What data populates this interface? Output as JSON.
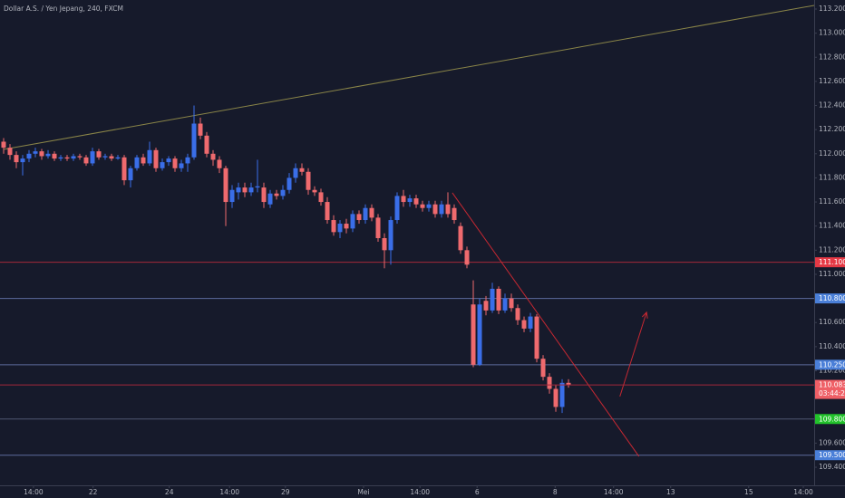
{
  "chart_data": {
    "type": "candlestick",
    "title": "Dollar A.S. / Yen Jepang, 240, FXCM",
    "up_color": "#3a6ee8",
    "down_color": "#ef6a6e",
    "grid": false,
    "x": [
      0,
      1,
      2,
      3,
      4,
      5,
      6,
      7,
      8,
      9,
      10,
      11,
      12,
      13,
      14,
      15,
      16,
      17,
      18,
      19,
      20,
      21,
      22,
      23,
      24,
      25,
      26,
      27,
      28,
      29,
      30,
      31,
      32,
      33,
      34,
      35,
      36,
      37,
      38,
      39,
      40,
      41,
      42,
      43,
      44,
      45,
      46,
      47,
      48,
      49,
      50,
      51,
      52,
      53,
      54,
      55,
      56,
      57,
      58,
      59,
      60,
      61,
      62,
      63,
      64,
      65,
      66,
      67,
      68,
      69,
      70,
      71,
      72,
      73,
      74,
      75,
      76,
      77,
      78,
      79,
      80,
      81,
      82,
      83,
      84,
      85,
      86,
      87,
      88,
      89
    ],
    "open": [
      112.1,
      112.05,
      111.99,
      111.93,
      111.96,
      112.0,
      112.02,
      111.98,
      112.0,
      111.96,
      111.97,
      111.96,
      111.98,
      111.97,
      111.92,
      112.02,
      111.97,
      111.98,
      111.96,
      111.97,
      111.78,
      111.88,
      111.97,
      111.92,
      112.03,
      111.88,
      111.93,
      111.96,
      111.88,
      111.92,
      111.97,
      112.25,
      112.15,
      112.0,
      111.95,
      111.88,
      111.6,
      111.68,
      111.72,
      111.68,
      111.72,
      111.72,
      111.58,
      111.67,
      111.65,
      111.7,
      111.8,
      111.88,
      111.85,
      111.7,
      111.68,
      111.6,
      111.45,
      111.35,
      111.42,
      111.38,
      111.5,
      111.45,
      111.55,
      111.47,
      111.3,
      111.2,
      111.45,
      111.65,
      111.6,
      111.63,
      111.58,
      111.55,
      111.58,
      111.5,
      111.58,
      111.55,
      111.4,
      111.2,
      110.75,
      110.25,
      110.78,
      110.7,
      110.88,
      110.7,
      110.8,
      110.72,
      110.62,
      110.55,
      110.65,
      110.3,
      110.15,
      110.05,
      109.9,
      110.1
    ],
    "high": [
      112.13,
      112.08,
      112.02,
      111.99,
      112.03,
      112.05,
      112.04,
      112.03,
      112.02,
      111.99,
      111.99,
      112.0,
      112.0,
      111.99,
      112.05,
      112.04,
      112.0,
      112.0,
      111.99,
      111.99,
      111.9,
      111.99,
      112.0,
      112.1,
      112.05,
      111.96,
      111.98,
      111.98,
      111.95,
      112.0,
      112.4,
      112.3,
      112.18,
      112.03,
      111.98,
      111.9,
      111.74,
      111.76,
      111.76,
      111.76,
      111.95,
      111.76,
      111.7,
      111.7,
      111.74,
      111.84,
      111.92,
      111.92,
      111.88,
      111.73,
      111.71,
      111.64,
      111.49,
      111.45,
      111.46,
      111.53,
      111.53,
      111.58,
      111.58,
      111.5,
      111.34,
      111.48,
      111.68,
      111.7,
      111.66,
      111.66,
      111.61,
      111.61,
      111.61,
      111.61,
      111.68,
      111.58,
      111.43,
      111.23,
      110.95,
      110.8,
      110.82,
      110.93,
      110.9,
      110.84,
      110.84,
      110.75,
      110.65,
      110.68,
      110.67,
      110.33,
      110.18,
      110.08,
      110.13,
      110.13
    ],
    "low": [
      112.0,
      111.95,
      111.88,
      111.82,
      111.93,
      111.97,
      111.95,
      111.96,
      111.94,
      111.94,
      111.94,
      111.94,
      111.95,
      111.9,
      111.9,
      111.95,
      111.95,
      111.94,
      111.95,
      111.74,
      111.72,
      111.86,
      111.9,
      111.9,
      111.85,
      111.86,
      111.9,
      111.85,
      111.85,
      111.85,
      111.95,
      112.12,
      111.97,
      111.9,
      111.84,
      111.4,
      111.55,
      111.62,
      111.64,
      111.65,
      111.68,
      111.55,
      111.55,
      111.62,
      111.62,
      111.67,
      111.76,
      111.82,
      111.66,
      111.65,
      111.57,
      111.42,
      111.32,
      111.3,
      111.34,
      111.35,
      111.42,
      111.42,
      111.44,
      111.27,
      111.05,
      111.08,
      111.42,
      111.56,
      111.56,
      111.55,
      111.52,
      111.52,
      111.47,
      111.47,
      111.47,
      111.42,
      111.17,
      111.05,
      110.23,
      110.24,
      110.66,
      110.68,
      110.67,
      110.68,
      110.69,
      110.58,
      110.52,
      110.52,
      110.27,
      110.12,
      110.01,
      109.86,
      109.85,
      110.06
    ],
    "close": [
      112.05,
      111.99,
      111.93,
      111.96,
      112.0,
      112.02,
      111.98,
      112.0,
      111.96,
      111.97,
      111.96,
      111.98,
      111.97,
      111.92,
      112.02,
      111.97,
      111.98,
      111.96,
      111.97,
      111.78,
      111.88,
      111.97,
      111.92,
      112.03,
      111.88,
      111.93,
      111.96,
      111.88,
      111.92,
      111.97,
      112.25,
      112.15,
      112.0,
      111.95,
      111.88,
      111.6,
      111.7,
      111.72,
      111.68,
      111.72,
      111.73,
      111.6,
      111.67,
      111.65,
      111.7,
      111.8,
      111.88,
      111.85,
      111.7,
      111.68,
      111.6,
      111.45,
      111.35,
      111.42,
      111.38,
      111.5,
      111.45,
      111.55,
      111.47,
      111.3,
      111.2,
      111.45,
      111.65,
      111.6,
      111.63,
      111.58,
      111.55,
      111.58,
      111.5,
      111.58,
      111.5,
      111.45,
      111.2,
      111.08,
      110.25,
      110.75,
      110.7,
      110.88,
      110.7,
      110.8,
      110.72,
      110.62,
      110.55,
      110.65,
      110.3,
      110.15,
      110.05,
      109.9,
      110.1,
      110.083
    ],
    "xlim": [
      -0.57,
      127.71
    ],
    "xticks": [
      {
        "value": 4.7,
        "label": "14:00"
      },
      {
        "value": 14.1,
        "label": "22"
      },
      {
        "value": 26.1,
        "label": "24"
      },
      {
        "value": 35.6,
        "label": "14:00"
      },
      {
        "value": 44.4,
        "label": "29"
      },
      {
        "value": 56.7,
        "label": "Mei"
      },
      {
        "value": 65.6,
        "label": "14:00"
      },
      {
        "value": 74.6,
        "label": "6"
      },
      {
        "value": 86.9,
        "label": "8"
      },
      {
        "value": 96.1,
        "label": "14:00"
      },
      {
        "value": 105.1,
        "label": "13"
      },
      {
        "value": 117.4,
        "label": "15"
      },
      {
        "value": 126,
        "label": "14:00"
      }
    ],
    "ylim": [
      109.25,
      113.275
    ],
    "yticks": [
      {
        "value": 109.4,
        "label": "109.400"
      },
      {
        "value": 109.6,
        "label": "109.600"
      },
      {
        "value": 109.8,
        "label": "109.800"
      },
      {
        "value": 110.0,
        "label": "110.000"
      },
      {
        "value": 110.2,
        "label": "110.200"
      },
      {
        "value": 110.4,
        "label": "110.400"
      },
      {
        "value": 110.6,
        "label": "110.600"
      },
      {
        "value": 110.8,
        "label": "110.800"
      },
      {
        "value": 111.0,
        "label": "111.000"
      },
      {
        "value": 111.2,
        "label": "111.200"
      },
      {
        "value": 111.4,
        "label": "111.400"
      },
      {
        "value": 111.6,
        "label": "111.600"
      },
      {
        "value": 111.8,
        "label": "111.800"
      },
      {
        "value": 112.0,
        "label": "112.000"
      },
      {
        "value": 112.2,
        "label": "112.200"
      },
      {
        "value": 112.4,
        "label": "112.400"
      },
      {
        "value": 112.6,
        "label": "112.600"
      },
      {
        "value": 112.8,
        "label": "112.800"
      },
      {
        "value": 113.0,
        "label": "113.000"
      },
      {
        "value": 113.2,
        "label": "113.200"
      }
    ],
    "price_lines": [
      {
        "value": 111.1,
        "label": "111.100",
        "color": "#a3283a",
        "label_color": "#e53945"
      },
      {
        "value": 110.8,
        "label": "110.800",
        "color": "#5c6a9c",
        "label_color": "#4a7fd8"
      },
      {
        "value": 110.25,
        "label": "110.250",
        "color": "#5c6a9c",
        "label_color": "#4a7fd8"
      },
      {
        "value": 109.8,
        "label": "109.800",
        "color": "#4e5670",
        "label_color": "#22c22b"
      },
      {
        "value": 109.5,
        "label": "109.500",
        "color": "#5c6a9c",
        "label_color": "#4a7fd8"
      }
    ],
    "current_price": {
      "value": 110.083,
      "label": "110.083",
      "countdown": "03:44:29",
      "color": "#a3283a",
      "label_color": "#ef5f66"
    },
    "trend_lines": [
      {
        "x": [
          0,
          127.71
        ],
        "y": [
          112.036,
          113.23
        ],
        "color": "#8a8548"
      },
      {
        "x": [
          70.7,
          100.1
        ],
        "y": [
          111.676,
          109.49
        ],
        "color": "#c62832"
      }
    ],
    "arrows": [
      {
        "x": [
          97.1,
          101.3
        ],
        "y": [
          109.987,
          110.685
        ],
        "color": "#c62832"
      }
    ]
  }
}
